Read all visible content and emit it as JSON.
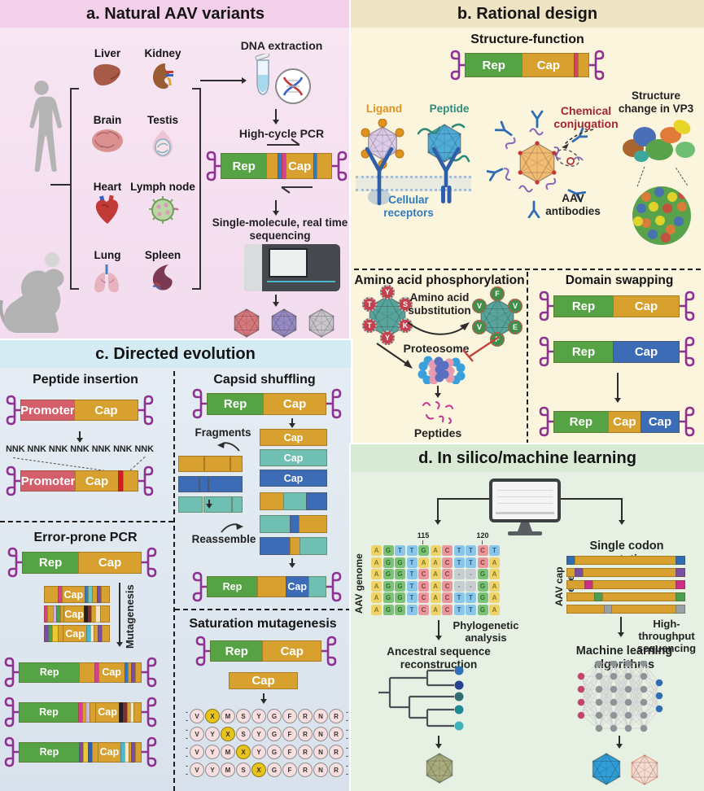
{
  "panel_a": {
    "title": "a. Natural AAV variants",
    "organs": [
      "Liver",
      "Kidney",
      "Brain",
      "Testis",
      "Heart",
      "Lymph node",
      "Lung",
      "Spleen"
    ],
    "dna_extraction_label": "DNA extraction",
    "pcr_label": "High-cycle PCR",
    "sequencing_label": "Single-molecule, real time sequencing",
    "capsid_colors": [
      "#d9797e",
      "#968bc5",
      "#c9c6cc"
    ]
  },
  "panel_b": {
    "title": "b. Rational design",
    "structure_function_heading": "Structure-function",
    "ligand_label": "Ligand",
    "peptide_label": "Peptide",
    "chemical_label": "Chemical conjugation",
    "vp3_label": "Structure change in VP3",
    "receptors_label": "Cellular receptors",
    "antibodies_label": "AAV antibodies",
    "phospho_heading": "Amino acid phosphorylation",
    "substitution_label": "Amino acid substitution",
    "proteosome_label": "Proteosome",
    "peptides_label": "Peptides",
    "left_residues": [
      "Y",
      "S",
      "K",
      "Y",
      "T",
      "T"
    ],
    "right_residues": [
      "F",
      "V",
      "E",
      "F",
      "V",
      "V"
    ],
    "domain_heading": "Domain swapping"
  },
  "panel_c": {
    "title": "c. Directed evolution",
    "peptide_insertion_heading": "Peptide insertion",
    "nnk_label": "NNK NNK NNK NNK NNK NNK NNK",
    "error_prone_heading": "Error-prone PCR",
    "mutagenesis_label": "Mutagenesis",
    "capsid_shuffling_heading": "Capsid shuffling",
    "fragments_label": "Fragments",
    "reassemble_label": "Reassemble",
    "saturation_heading": "Saturation mutagenesis",
    "saturation_rows": [
      [
        "V",
        "X",
        "M",
        "S",
        "Y",
        "G",
        "F",
        "R",
        "N",
        "R"
      ],
      [
        "V",
        "Y",
        "X",
        "S",
        "Y",
        "G",
        "F",
        "R",
        "N",
        "R"
      ],
      [
        "V",
        "Y",
        "M",
        "X",
        "Y",
        "G",
        "F",
        "R",
        "N",
        "R"
      ],
      [
        "V",
        "Y",
        "M",
        "S",
        "X",
        "G",
        "F",
        "R",
        "N",
        "R"
      ]
    ]
  },
  "panel_d": {
    "title": "d. In silico/machine learning",
    "genome_label": "AAV genome",
    "pos_115": "115",
    "pos_120": "120",
    "alignment": [
      [
        "A",
        "G",
        "T",
        "T",
        "G",
        "A",
        "C",
        "T",
        "T",
        "C",
        "T"
      ],
      [
        "A",
        "G",
        "G",
        "T",
        "A",
        "A",
        "C",
        "T",
        "T",
        "C",
        "A"
      ],
      [
        "A",
        "G",
        "G",
        "T",
        "C",
        "A",
        "C",
        "-",
        "-",
        "G",
        "A"
      ],
      [
        "A",
        "G",
        "G",
        "T",
        "C",
        "A",
        "C",
        "-",
        "-",
        "G",
        "A"
      ],
      [
        "A",
        "G",
        "G",
        "T",
        "C",
        "A",
        "C",
        "T",
        "T",
        "G",
        "A"
      ],
      [
        "A",
        "G",
        "G",
        "T",
        "C",
        "A",
        "C",
        "T",
        "T",
        "G",
        "A"
      ]
    ],
    "phylo_label": "Phylogenetic analysis",
    "ancestral_label": "Ancestral sequence reconstruction",
    "tree_leaf_colors": [
      "#2f6fb5",
      "#28418f",
      "#2e6e72",
      "#1d8a93",
      "#41b1bd"
    ],
    "ancestral_capsid_color": "#a9ad7e",
    "cap_gene_label": "AAV cap gene",
    "codon_heading": "Single codon mutation",
    "hts_label": "High-throughput sequencing",
    "ml_label": "Machine learning algorithms",
    "nn_colors": {
      "input": "#c2476e",
      "hidden": "#8f9398",
      "output": "#2e6db4"
    },
    "result_capsid_colors": [
      "#2f9fd8",
      "#f8dcd0"
    ]
  },
  "base_colors": {
    "A": "#eed36a",
    "G": "#7cc276",
    "T": "#8ac6ea",
    "C": "#e8989c",
    "-": "#c8cdd2"
  },
  "base_text_colors": {
    "A": "#8a7520",
    "G": "#2e6b2e",
    "T": "#2b5f84",
    "C": "#8a3a3a",
    "-": "#666d73"
  },
  "colors": {
    "itr": "#8e3191",
    "phospho_hex": "#57a49c",
    "conjugation_hex": "#f2bd72",
    "ligand_hex": "#ddcbea",
    "peptide_hex": "#4fabd8"
  },
  "constructs": {
    "a_pcr": [
      {
        "t": "Rep",
        "c": "#56a345",
        "f": 30
      },
      {
        "c": "#d7a02f",
        "f": 7
      },
      {
        "c": "#3a78c2",
        "f": 2
      },
      {
        "c": "#d6408e",
        "f": 2
      },
      {
        "t": "Cap",
        "c": "#d7a02f",
        "f": 18
      },
      {
        "c": "#3a78c2",
        "f": 2
      },
      {
        "c": "#d7a02f",
        "f": 9
      }
    ],
    "b_sf": [
      {
        "t": "Rep",
        "c": "#56a345",
        "f": 42
      },
      {
        "t": "Cap",
        "c": "#d7a02f",
        "f": 38
      },
      {
        "c": "#d6436a",
        "f": 2.5
      },
      {
        "c": "#d7a02f",
        "f": 7
      }
    ],
    "b_ds_gold": [
      {
        "t": "Rep",
        "c": "#56a345",
        "f": 45
      },
      {
        "t": "Cap",
        "c": "#d7a02f",
        "f": 50
      }
    ],
    "b_ds_blue": [
      {
        "t": "Rep",
        "c": "#56a345",
        "f": 45
      },
      {
        "t": "Cap",
        "c": "#3b6cb5",
        "f": 50
      }
    ],
    "b_ds_swap": [
      {
        "t": "Rep",
        "c": "#56a345",
        "f": 40
      },
      {
        "t": "Cap",
        "c": "#d7a02f",
        "f": 24
      },
      {
        "t": "Cap",
        "c": "#3b6cb5",
        "f": 28
      }
    ],
    "c_pi_top": [
      {
        "t": "Promoter",
        "c": "#d45f6b",
        "f": 42
      },
      {
        "t": "Cap",
        "c": "#d7a02f",
        "f": 50
      }
    ],
    "c_pi_bottom": [
      {
        "t": "Promoter",
        "c": "#d45f6b",
        "f": 42
      },
      {
        "t": "Cap",
        "c": "#d7a02f",
        "f": 33
      },
      {
        "c": "#cc2026",
        "f": 3
      },
      {
        "c": "#d7a02f",
        "f": 11
      }
    ],
    "c_repcap": [
      {
        "t": "Rep",
        "c": "#56a345",
        "f": 45
      },
      {
        "t": "Cap",
        "c": "#d7a02f",
        "f": 50
      }
    ],
    "c_ep_bar1": [
      {
        "c": "#d7a02f",
        "f": 9
      },
      {
        "c": "#d6408e",
        "f": 2
      },
      {
        "t": "Cap",
        "c": "#d7a02f",
        "f": 15
      },
      {
        "c": "#3a78c2",
        "f": 2
      },
      {
        "c": "#6fc7bd",
        "f": 2
      },
      {
        "c": "#d7a02f",
        "f": 3
      },
      {
        "c": "#7a4fa3",
        "f": 2
      },
      {
        "c": "#d7a02f",
        "f": 5
      }
    ],
    "c_ep_bar2": [
      {
        "c": "#d6408e",
        "f": 2
      },
      {
        "c": "#d7a02f",
        "f": 3
      },
      {
        "c": "#cbb3e0",
        "f": 2
      },
      {
        "c": "#4f9e4f",
        "f": 2
      },
      {
        "c": "#d7a02f",
        "f": 2
      },
      {
        "t": "Cap",
        "c": "#d7a02f",
        "f": 14
      },
      {
        "c": "#221f20",
        "f": 2
      },
      {
        "c": "#7c2d3c",
        "f": 2
      },
      {
        "c": "#d7a02f",
        "f": 2
      },
      {
        "c": "#f3e6c3",
        "f": 3
      },
      {
        "c": "#d7a02f",
        "f": 6
      }
    ],
    "c_ep_bar3": [
      {
        "c": "#7a4fa3",
        "f": 2
      },
      {
        "c": "#4f9e4f",
        "f": 2
      },
      {
        "c": "#ecc832",
        "f": 3
      },
      {
        "c": "#d7a02f",
        "f": 3
      },
      {
        "t": "Cap",
        "c": "#d7a02f",
        "f": 14
      },
      {
        "c": "#49b9d4",
        "f": 2
      },
      {
        "c": "#f3e6c3",
        "f": 2
      },
      {
        "c": "#d7a02f",
        "f": 2
      },
      {
        "c": "#7a4fa3",
        "f": 2
      },
      {
        "c": "#d7a02f",
        "f": 4
      }
    ],
    "c_ep_res1": [
      {
        "t": "Rep",
        "c": "#56a345",
        "f": 38
      },
      {
        "c": "#d7a02f",
        "f": 9
      },
      {
        "c": "#d6408e",
        "f": 2
      },
      {
        "t": "Cap",
        "c": "#d7a02f",
        "f": 16
      },
      {
        "c": "#3a78c2",
        "f": 2
      },
      {
        "c": "#d7a02f",
        "f": 1.5
      },
      {
        "c": "#7a4fa3",
        "f": 2
      },
      {
        "c": "#d7a02f",
        "f": 3
      }
    ],
    "c_ep_res2": [
      {
        "t": "Rep",
        "c": "#56a345",
        "f": 38
      },
      {
        "c": "#d6408e",
        "f": 2
      },
      {
        "c": "#d7a02f",
        "f": 2
      },
      {
        "c": "#cbb3e0",
        "f": 2
      },
      {
        "c": "#d7a02f",
        "f": 3
      },
      {
        "t": "Cap",
        "c": "#d7a02f",
        "f": 15
      },
      {
        "c": "#221f20",
        "f": 2
      },
      {
        "c": "#7c2d3c",
        "f": 2
      },
      {
        "c": "#d7a02f",
        "f": 1.5
      },
      {
        "c": "#f3e6c3",
        "f": 2
      },
      {
        "c": "#d7a02f",
        "f": 4
      }
    ],
    "c_ep_res3": [
      {
        "t": "Rep",
        "c": "#56a345",
        "f": 38
      },
      {
        "c": "#7a4fa3",
        "f": 2
      },
      {
        "c": "#ecc832",
        "f": 3
      },
      {
        "c": "#2f5fa8",
        "f": 2
      },
      {
        "c": "#d7a02f",
        "f": 3
      },
      {
        "t": "Cap",
        "c": "#d7a02f",
        "f": 14
      },
      {
        "c": "#49b9d4",
        "f": 2
      },
      {
        "c": "#f3e6c3",
        "f": 2
      },
      {
        "c": "#d7a02f",
        "f": 1.5
      },
      {
        "c": "#7a4fa3",
        "f": 2
      },
      {
        "c": "#d7a02f",
        "f": 3
      }
    ],
    "cs_cap_gold": [
      {
        "t": "Cap",
        "c": "#d7a02f",
        "f": 1
      }
    ],
    "cs_cap_teal": [
      {
        "t": "Cap",
        "c": "#6fc0b2",
        "f": 1
      }
    ],
    "cs_cap_blue": [
      {
        "t": "Cap",
        "c": "#3b6cb5",
        "f": 1
      }
    ],
    "frag_gold": [
      {
        "c": "#d7a02f",
        "f": 38
      },
      {
        "c": "",
        "f": 3
      },
      {
        "c": "#d7a02f",
        "f": 38
      },
      {
        "c": "",
        "f": 3
      },
      {
        "c": "#d7a02f",
        "f": 16
      }
    ],
    "frag_blue": [
      {
        "c": "#3b6cb5",
        "f": 30
      },
      {
        "c": "",
        "f": 3
      },
      {
        "c": "#3b6cb5",
        "f": 11
      },
      {
        "c": "",
        "f": 3
      },
      {
        "c": "#3b6cb5",
        "f": 51
      }
    ],
    "frag_teal": [
      {
        "c": "#6fc0b2",
        "f": 36
      },
      {
        "c": "",
        "f": 3
      },
      {
        "c": "#6fc0b2",
        "f": 42
      },
      {
        "c": "",
        "f": 3
      },
      {
        "c": "#6fc0b2",
        "f": 14
      }
    ],
    "cs_chi1": [
      {
        "c": "#d7a02f",
        "f": 36
      },
      {
        "c": "#6fc0b2",
        "f": 33
      },
      {
        "c": "#3b6cb5",
        "f": 31
      }
    ],
    "cs_chi2": [
      {
        "c": "#6fc0b2",
        "f": 46
      },
      {
        "c": "#3b6cb5",
        "f": 12
      },
      {
        "c": "#d7a02f",
        "f": 42
      }
    ],
    "cs_chi3": [
      {
        "c": "#3b6cb5",
        "f": 46
      },
      {
        "c": "#d7a02f",
        "f": 14
      },
      {
        "c": "#6fc0b2",
        "f": 40
      }
    ],
    "cs_final": [
      {
        "t": "Rep",
        "c": "#56a345",
        "f": 36
      },
      {
        "c": "#d7a02f",
        "f": 20
      },
      {
        "t": "Cap",
        "c": "#3b6cb5",
        "f": 16
      },
      {
        "c": "#6fc0b2",
        "f": 12
      }
    ],
    "sm_cap": [
      {
        "t": "Cap",
        "c": "#d7a02f",
        "f": 1
      }
    ],
    "d_bar1": [
      {
        "c": "#2e6db4",
        "f": 6
      },
      {
        "c": "#d7a02f",
        "f": 82
      },
      {
        "c": "#2e6db4",
        "f": 7
      }
    ],
    "d_bar2": [
      {
        "c": "#d7a02f",
        "f": 6
      },
      {
        "c": "#7a4fa3",
        "f": 6
      },
      {
        "c": "#d7a02f",
        "f": 76
      },
      {
        "c": "#7a4fa3",
        "f": 7
      }
    ],
    "d_bar3": [
      {
        "c": "#d7a02f",
        "f": 14
      },
      {
        "c": "#cc2f86",
        "f": 6
      },
      {
        "c": "#d7a02f",
        "f": 68
      },
      {
        "c": "#cc2f86",
        "f": 7
      }
    ],
    "d_bar4": [
      {
        "c": "#d7a02f",
        "f": 22
      },
      {
        "c": "#4c9e52",
        "f": 6
      },
      {
        "c": "#d7a02f",
        "f": 60
      },
      {
        "c": "#4c9e52",
        "f": 7
      }
    ],
    "d_bar5": [
      {
        "c": "#d7a02f",
        "f": 30
      },
      {
        "c": "#9aa0a6",
        "f": 6
      },
      {
        "c": "#d7a02f",
        "f": 52
      },
      {
        "c": "#9aa0a6",
        "f": 7
      }
    ]
  }
}
